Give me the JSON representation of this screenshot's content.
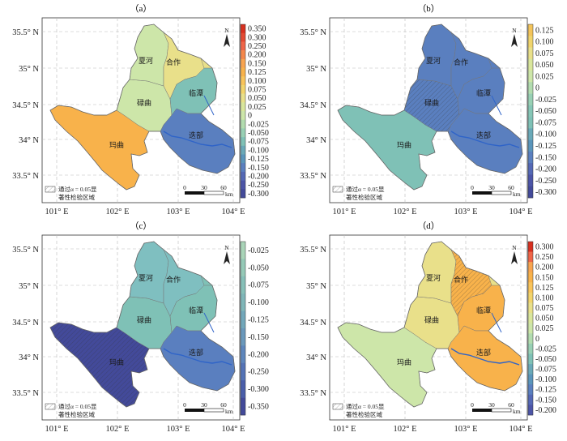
{
  "panels": [
    {
      "label": "（a）",
      "theme": "diverging_full",
      "colorbar_ticks": [
        "0.350",
        "0.300",
        "0.250",
        "0.200",
        "0.150",
        "0.125",
        "0.100",
        "0.075",
        "0.050",
        "0.025",
        "0",
        "-0.025",
        "-0.050",
        "-0.075",
        "-0.100",
        "-0.125",
        "-0.150",
        "-0.200",
        "-0.250",
        "-0.300"
      ],
      "show_legend": true
    },
    {
      "label": "（b）",
      "theme": "mostly_negative",
      "colorbar_ticks": [
        "0.125",
        "0.100",
        "0.075",
        "0.050",
        "0.025",
        "0",
        "-0.025",
        "-0.050",
        "-0.075",
        "-0.100",
        "-0.125",
        "-0.150",
        "-0.200",
        "-0.250",
        "-0.300"
      ],
      "show_legend": true
    },
    {
      "label": "（c）",
      "theme": "all_negative",
      "colorbar_ticks": [
        "-0.025",
        "-0.050",
        "-0.075",
        "-0.100",
        "-0.125",
        "-0.150",
        "-0.200",
        "-0.250",
        "-0.300",
        "-0.350"
      ],
      "show_legend": true
    },
    {
      "label": "（d）",
      "theme": "diverging_pos",
      "colorbar_ticks": [
        "0.300",
        "0.250",
        "0.200",
        "0.150",
        "0.125",
        "0.100",
        "0.075",
        "0.050",
        "0.025",
        "0",
        "-0.025",
        "-0.050",
        "-0.075",
        "-0.100",
        "-0.125",
        "-0.150",
        "-0.200"
      ],
      "show_legend": true
    }
  ],
  "lat_labels": [
    "35.5° N",
    "35° N",
    "34.5° N",
    "34° N",
    "33.5° N"
  ],
  "lon_labels": [
    "101° E",
    "102° E",
    "103° E",
    "104° E"
  ],
  "places": [
    "夏河",
    "合作",
    "临潭",
    "碌曲",
    "玛曲",
    "迭部"
  ],
  "north_label": "N",
  "scale_bar": {
    "ticks": [
      "0",
      "30",
      "60"
    ],
    "unit": "km"
  },
  "legend": {
    "line1": "通过α = 0.05显",
    "line2": "著性检验区域"
  },
  "colors": {
    "red": "#d7301f",
    "orange": "#f8b24b",
    "yellow": "#e9e08a",
    "lightgreen": "#cde6a9",
    "teal": "#7fc1b6",
    "blue": "#5a7fbf",
    "darkblue": "#434a9a",
    "river": "#2f64c8"
  }
}
